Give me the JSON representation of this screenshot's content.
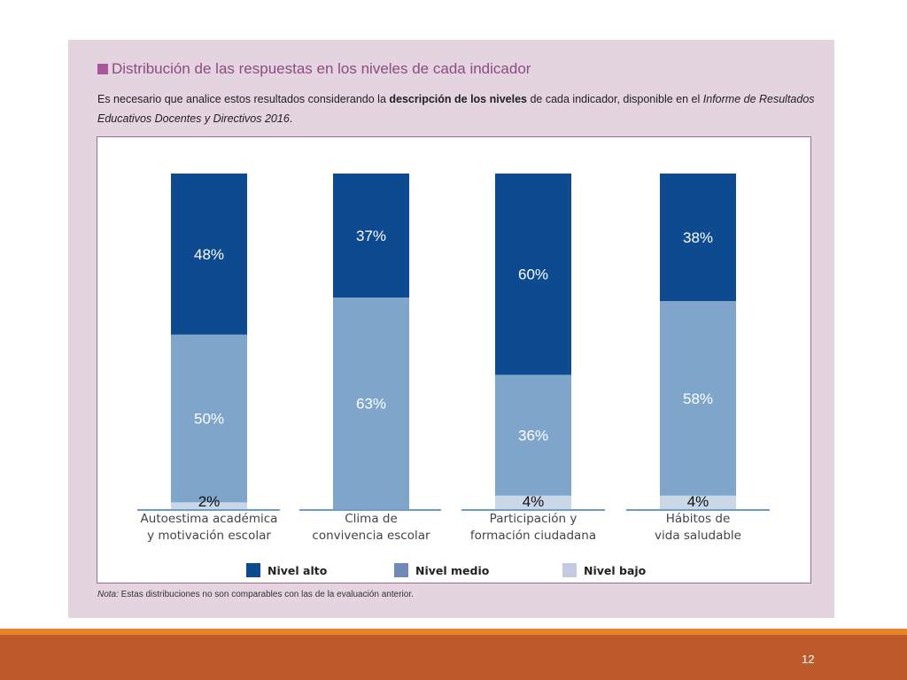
{
  "header": {
    "title": "Distribución de las respuestas en los niveles de cada indicador",
    "intro_part1": "Es necesario que analice estos resultados considerando la ",
    "intro_bold": "descripción de los niveles",
    "intro_part2": " de cada indicador, disponible en el ",
    "intro_italic": "Informe de Resultados Educativos Docentes y Directivos 2016",
    "intro_end": "."
  },
  "note": {
    "label": "Nota:",
    "text": " Estas distribuciones no son comparables con las de la evaluación anterior."
  },
  "footer": {
    "page_number": "12"
  },
  "colors": {
    "alto": "#0e4a90",
    "medio": "#80a5cb",
    "bajo": "#c9d7e7",
    "legend_medio": "#7089b6",
    "legend_bajo": "#c3cbe0",
    "panel": "#e3d4df",
    "footer": "#bc5a2c",
    "footer_line": "#e8832a"
  },
  "chart_data": {
    "type": "bar",
    "stacked": true,
    "categories": [
      [
        "Autoestima académica",
        "y motivación escolar"
      ],
      [
        "Clima de",
        "convivencia escolar"
      ],
      [
        "Participación y",
        "formación ciudadana"
      ],
      [
        "Hábitos de",
        "vida saludable"
      ]
    ],
    "series": [
      {
        "name": "Nivel alto",
        "values": [
          48,
          37,
          60,
          38
        ],
        "labels": [
          "48%",
          "37%",
          "60%",
          "38%"
        ]
      },
      {
        "name": "Nivel medio",
        "values": [
          50,
          63,
          36,
          58
        ],
        "labels": [
          "50%",
          "63%",
          "36%",
          "58%"
        ]
      },
      {
        "name": "Nivel bajo",
        "values": [
          2,
          0,
          4,
          4
        ],
        "labels": [
          "2%",
          "",
          "4%",
          "4%"
        ]
      }
    ],
    "ylim": [
      0,
      100
    ],
    "legend": [
      "Nivel alto",
      "Nivel medio",
      "Nivel bajo"
    ],
    "legend_position": "bottom"
  }
}
